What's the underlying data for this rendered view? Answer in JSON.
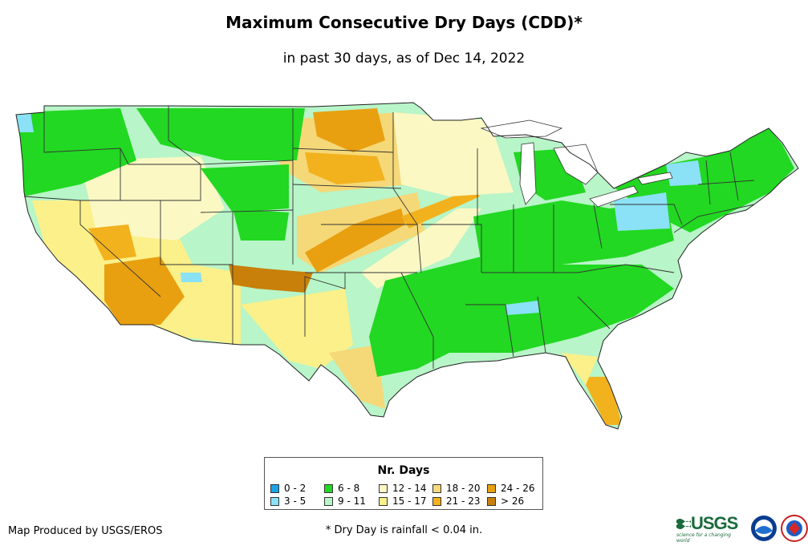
{
  "title": "Maximum Consecutive Dry Days (CDD)*",
  "subtitle": "in past 30 days, as of Dec 14, 2022",
  "legend": {
    "title": "Nr. Days",
    "items": [
      {
        "label": "0 - 2",
        "color": "#1aa3e8"
      },
      {
        "label": "3 - 5",
        "color": "#8be1f5"
      },
      {
        "label": "6 - 8",
        "color": "#22d822"
      },
      {
        "label": "9 - 11",
        "color": "#b8f5c8"
      },
      {
        "label": "12 - 14",
        "color": "#fbf8c4"
      },
      {
        "label": "15 - 17",
        "color": "#fbf08a"
      },
      {
        "label": "18 - 20",
        "color": "#f5d878"
      },
      {
        "label": "21 - 23",
        "color": "#f2b21e"
      },
      {
        "label": "24 - 26",
        "color": "#e8a010"
      },
      {
        "label": "> 26",
        "color": "#c8800a"
      }
    ]
  },
  "credit": "Map Produced by USGS/EROS",
  "footnote": "* Dry Day is rainfall < 0.04 in.",
  "logos": {
    "usgs_text": "USGS",
    "usgs_tagline": "science for a changing world"
  }
}
